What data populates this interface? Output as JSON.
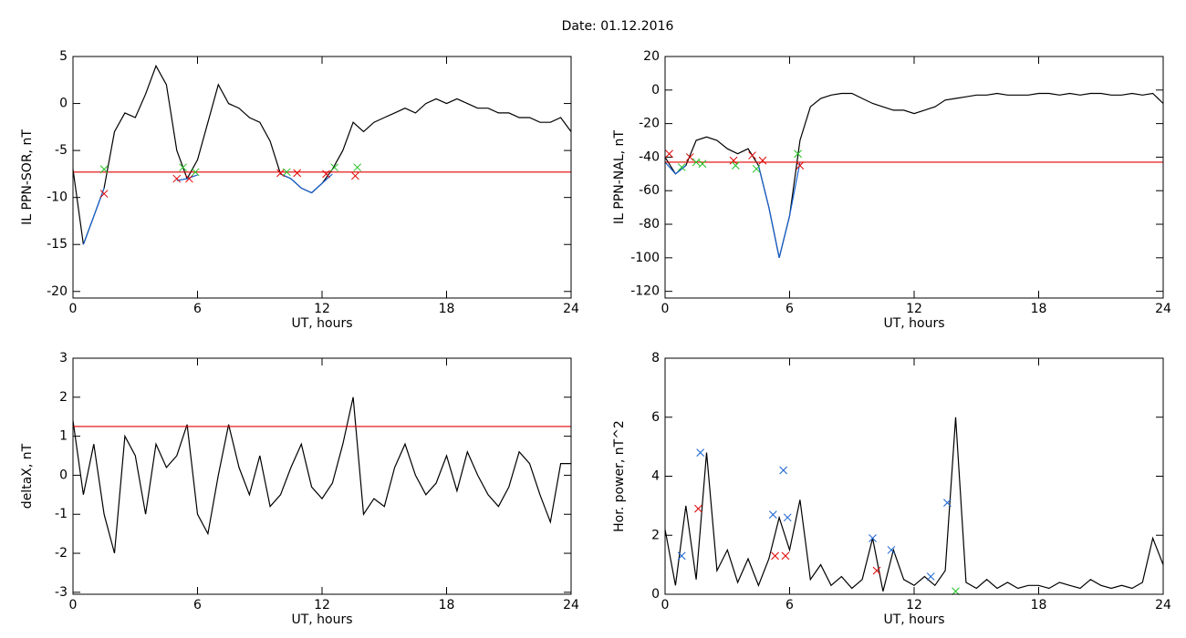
{
  "title": "Date:  01.12.2016",
  "chart_data": [
    {
      "type": "line",
      "ylabel": "IL PPN-SOR, nT",
      "xlabel": "UT, hours",
      "xlim": [
        0,
        24
      ],
      "ylim": [
        -20.7,
        5
      ],
      "xticks": [
        0,
        6,
        12,
        18,
        24
      ],
      "yticks": [
        5,
        0,
        -5,
        -10,
        -15,
        -20
      ],
      "x": [
        0,
        0.5,
        1,
        1.5,
        2,
        2.5,
        3,
        3.5,
        4,
        4.5,
        5,
        5.5,
        6,
        6.5,
        7,
        7.5,
        8,
        8.5,
        9,
        9.5,
        10,
        10.5,
        11,
        11.5,
        12,
        12.5,
        13,
        13.5,
        14,
        14.5,
        15,
        15.5,
        16,
        16.5,
        17,
        17.5,
        18,
        18.5,
        19,
        19.5,
        20,
        20.5,
        21,
        21.5,
        22,
        22.5,
        23,
        23.5,
        24
      ],
      "series": [
        {
          "color": "#000000",
          "values": [
            -7,
            -15,
            -12,
            -9,
            -3,
            -1,
            -1.5,
            1,
            4,
            2,
            -5,
            -8,
            -6,
            -2,
            2,
            0,
            -0.5,
            -1.5,
            -2,
            -4,
            -7.5,
            -8,
            -9,
            -9.5,
            -8.5,
            -7,
            -5,
            -2,
            -3,
            -2,
            -1.5,
            -1,
            -0.5,
            -1,
            0,
            0.5,
            0,
            0.5,
            0,
            -0.5,
            -0.5,
            -1,
            -1,
            -1.5,
            -1.5,
            -2,
            -2,
            -1.5,
            -3
          ]
        },
        {
          "color": "#1560d0",
          "values": [
            null,
            -15,
            -12,
            -9,
            null,
            null,
            null,
            null,
            null,
            null,
            -8.2,
            -8,
            -7.6,
            null,
            null,
            null,
            null,
            null,
            null,
            null,
            -7.5,
            -8,
            -9,
            -9.5,
            -8.5,
            -7.5,
            null,
            null,
            null,
            null,
            null,
            null,
            null,
            null,
            null,
            null,
            null,
            null,
            null,
            null,
            null,
            null,
            null,
            null,
            null,
            null,
            null,
            null,
            null
          ]
        }
      ],
      "threshold": -7.3,
      "threshold_color": "#e00000",
      "markers": {
        "x": [
          1.5,
          1.5,
          5,
          5.3,
          5.6,
          5.9,
          10,
          10.3,
          10.8,
          12.2,
          12.6,
          13.6,
          13.7
        ],
        "y": [
          -9.6,
          -7,
          -8,
          -6.8,
          -8,
          -7.3,
          -7.4,
          -7.3,
          -7.4,
          -7.5,
          -6.8,
          -7.7,
          -6.8
        ],
        "colors": [
          "#e00000",
          "#20c020",
          "#e00000",
          "#20c020",
          "#e00000",
          "#20c020",
          "#e00000",
          "#20c020",
          "#e00000",
          "#e00000",
          "#20c020",
          "#e00000",
          "#20c020"
        ]
      }
    },
    {
      "type": "line",
      "ylabel": "IL PPN-NAL, nT",
      "xlabel": "UT, hours",
      "xlim": [
        0,
        24
      ],
      "ylim": [
        -124,
        20
      ],
      "xticks": [
        0,
        6,
        12,
        18,
        24
      ],
      "yticks": [
        20,
        0,
        -20,
        -40,
        -60,
        -80,
        -100,
        -120
      ],
      "x": [
        0,
        0.5,
        1,
        1.5,
        2,
        2.5,
        3,
        3.5,
        4,
        4.5,
        5,
        5.5,
        6,
        6.5,
        7,
        7.5,
        8,
        8.5,
        9,
        9.5,
        10,
        10.5,
        11,
        11.5,
        12,
        12.5,
        13,
        13.5,
        14,
        14.5,
        15,
        15.5,
        16,
        16.5,
        17,
        17.5,
        18,
        18.5,
        19,
        19.5,
        20,
        20.5,
        21,
        21.5,
        22,
        22.5,
        23,
        23.5,
        24
      ],
      "series": [
        {
          "color": "#000000",
          "values": [
            -40,
            -50,
            -45,
            -30,
            -28,
            -30,
            -35,
            -38,
            -35,
            -45,
            -70,
            -100,
            -75,
            -30,
            -10,
            -5,
            -3,
            -2,
            -2,
            -5,
            -8,
            -10,
            -12,
            -12,
            -14,
            -12,
            -10,
            -6,
            -5,
            -4,
            -3,
            -3,
            -2,
            -3,
            -3,
            -3,
            -2,
            -2,
            -3,
            -2,
            -3,
            -2,
            -2,
            -3,
            -3,
            -2,
            -3,
            -2,
            -8
          ]
        },
        {
          "color": "#1560d0",
          "values": [
            -43,
            -50,
            -45,
            null,
            null,
            null,
            null,
            null,
            null,
            -45,
            -70,
            -100,
            -75,
            -43,
            null,
            null,
            null,
            null,
            null,
            null,
            null,
            null,
            null,
            null,
            null,
            null,
            null,
            null,
            null,
            null,
            null,
            null,
            null,
            null,
            null,
            null,
            null,
            null,
            null,
            null,
            null,
            null,
            null,
            null,
            null,
            null,
            null,
            null,
            null
          ]
        }
      ],
      "threshold": -43,
      "threshold_color": "#e00000",
      "markers": {
        "x": [
          0.2,
          0.8,
          1.2,
          1.5,
          1.8,
          3.3,
          3.4,
          4.2,
          4.4,
          4.7,
          6.4,
          6.5
        ],
        "y": [
          -38,
          -46,
          -40,
          -43,
          -44,
          -42,
          -45,
          -39,
          -47,
          -42,
          -38,
          -45
        ],
        "colors": [
          "#e00000",
          "#20c020",
          "#e00000",
          "#20c020",
          "#20c020",
          "#e00000",
          "#20c020",
          "#e00000",
          "#20c020",
          "#e00000",
          "#20c020",
          "#e00000"
        ]
      }
    },
    {
      "type": "line",
      "ylabel": "deltaX, nT",
      "xlabel": "UT, hours",
      "xlim": [
        0,
        24
      ],
      "ylim": [
        -3.05,
        3
      ],
      "xticks": [
        0,
        6,
        12,
        18,
        24
      ],
      "yticks": [
        3,
        2,
        1,
        0,
        -1,
        -2,
        -3
      ],
      "x": [
        0,
        0.5,
        1,
        1.5,
        2,
        2.5,
        3,
        3.5,
        4,
        4.5,
        5,
        5.5,
        6,
        6.5,
        7,
        7.5,
        8,
        8.5,
        9,
        9.5,
        10,
        10.5,
        11,
        11.5,
        12,
        12.5,
        13,
        13.5,
        14,
        14.5,
        15,
        15.5,
        16,
        16.5,
        17,
        17.5,
        18,
        18.5,
        19,
        19.5,
        20,
        20.5,
        21,
        21.5,
        22,
        22.5,
        23,
        23.5,
        24
      ],
      "series": [
        {
          "color": "#000000",
          "values": [
            1.4,
            -0.5,
            0.8,
            -1,
            -2,
            1,
            0.5,
            -1,
            0.8,
            0.2,
            0.5,
            1.3,
            -1,
            -1.5,
            0,
            1.3,
            0.2,
            -0.5,
            0.5,
            -0.8,
            -0.5,
            0.2,
            0.8,
            -0.3,
            -0.6,
            -0.2,
            0.8,
            2,
            -1,
            -0.6,
            -0.8,
            0.2,
            0.8,
            0,
            -0.5,
            -0.2,
            0.5,
            -0.4,
            0.6,
            0,
            -0.5,
            -0.8,
            -0.3,
            0.6,
            0.3,
            -0.5,
            -1.2,
            0.3,
            0.3
          ]
        }
      ],
      "threshold": 1.25,
      "threshold_color": "#e00000"
    },
    {
      "type": "line",
      "ylabel": "Hor. power, nT^2",
      "xlabel": "UT, hours",
      "xlim": [
        0,
        24
      ],
      "ylim": [
        0,
        8
      ],
      "xticks": [
        0,
        6,
        12,
        18,
        24
      ],
      "yticks": [
        8,
        6,
        4,
        2,
        0
      ],
      "x": [
        0,
        0.5,
        1,
        1.5,
        2,
        2.5,
        3,
        3.5,
        4,
        4.5,
        5,
        5.5,
        6,
        6.5,
        7,
        7.5,
        8,
        8.5,
        9,
        9.5,
        10,
        10.5,
        11,
        11.5,
        12,
        12.5,
        13,
        13.5,
        14,
        14.5,
        15,
        15.5,
        16,
        16.5,
        17,
        17.5,
        18,
        18.5,
        19,
        19.5,
        20,
        20.5,
        21,
        21.5,
        22,
        22.5,
        23,
        23.5,
        24
      ],
      "series": [
        {
          "color": "#000000",
          "values": [
            2.2,
            0.3,
            3,
            0.5,
            4.8,
            0.8,
            1.5,
            0.4,
            1.2,
            0.3,
            1.2,
            2.6,
            1.5,
            3.2,
            0.5,
            1,
            0.3,
            0.6,
            0.2,
            0.5,
            1.9,
            0.1,
            1.5,
            0.5,
            0.3,
            0.6,
            0.3,
            0.8,
            6,
            0.4,
            0.2,
            0.5,
            0.2,
            0.4,
            0.2,
            0.3,
            0.3,
            0.2,
            0.4,
            0.3,
            0.2,
            0.5,
            0.3,
            0.2,
            0.3,
            0.2,
            0.4,
            1.9,
            1
          ]
        }
      ],
      "markers": {
        "x": [
          0.8,
          1.6,
          1.7,
          5.2,
          5.3,
          5.7,
          5.8,
          5.9,
          10,
          10.2,
          10.9,
          12.8,
          13.6,
          14
        ],
        "y": [
          1.3,
          2.9,
          4.8,
          2.7,
          1.3,
          4.2,
          1.3,
          2.6,
          1.9,
          0.8,
          1.5,
          0.6,
          3.1,
          0.1
        ],
        "colors": [
          "#1560d0",
          "#e00000",
          "#1560d0",
          "#1560d0",
          "#e00000",
          "#1560d0",
          "#e00000",
          "#1560d0",
          "#1560d0",
          "#e00000",
          "#1560d0",
          "#1560d0",
          "#1560d0",
          "#20c020"
        ]
      }
    }
  ]
}
